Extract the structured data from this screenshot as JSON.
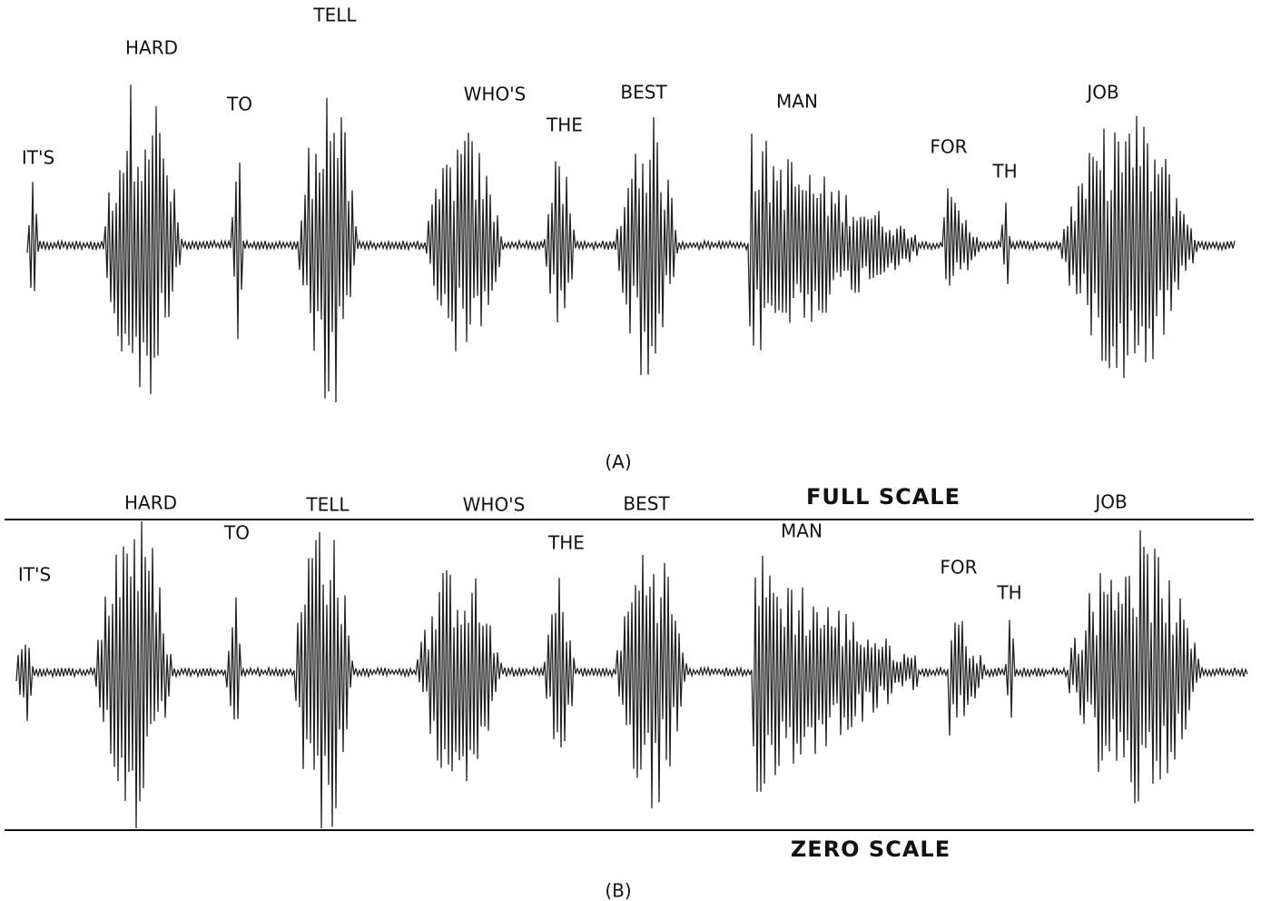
{
  "panel_a": {
    "words": [
      "IT'S",
      "HARD",
      "TO",
      "TELL",
      "WHO'S",
      "THE",
      "BEST",
      "MAN",
      "FOR",
      "TH",
      "JOB"
    ],
    "caption": "(A)"
  },
  "panel_b": {
    "words": [
      "IT'S",
      "HARD",
      "TO",
      "TELL",
      "WHO'S",
      "THE",
      "BEST",
      "MAN",
      "FOR",
      "TH",
      "JOB"
    ],
    "full_scale_label": "FULL SCALE",
    "zero_scale_label": "ZERO SCALE",
    "caption": "(B)"
  }
}
